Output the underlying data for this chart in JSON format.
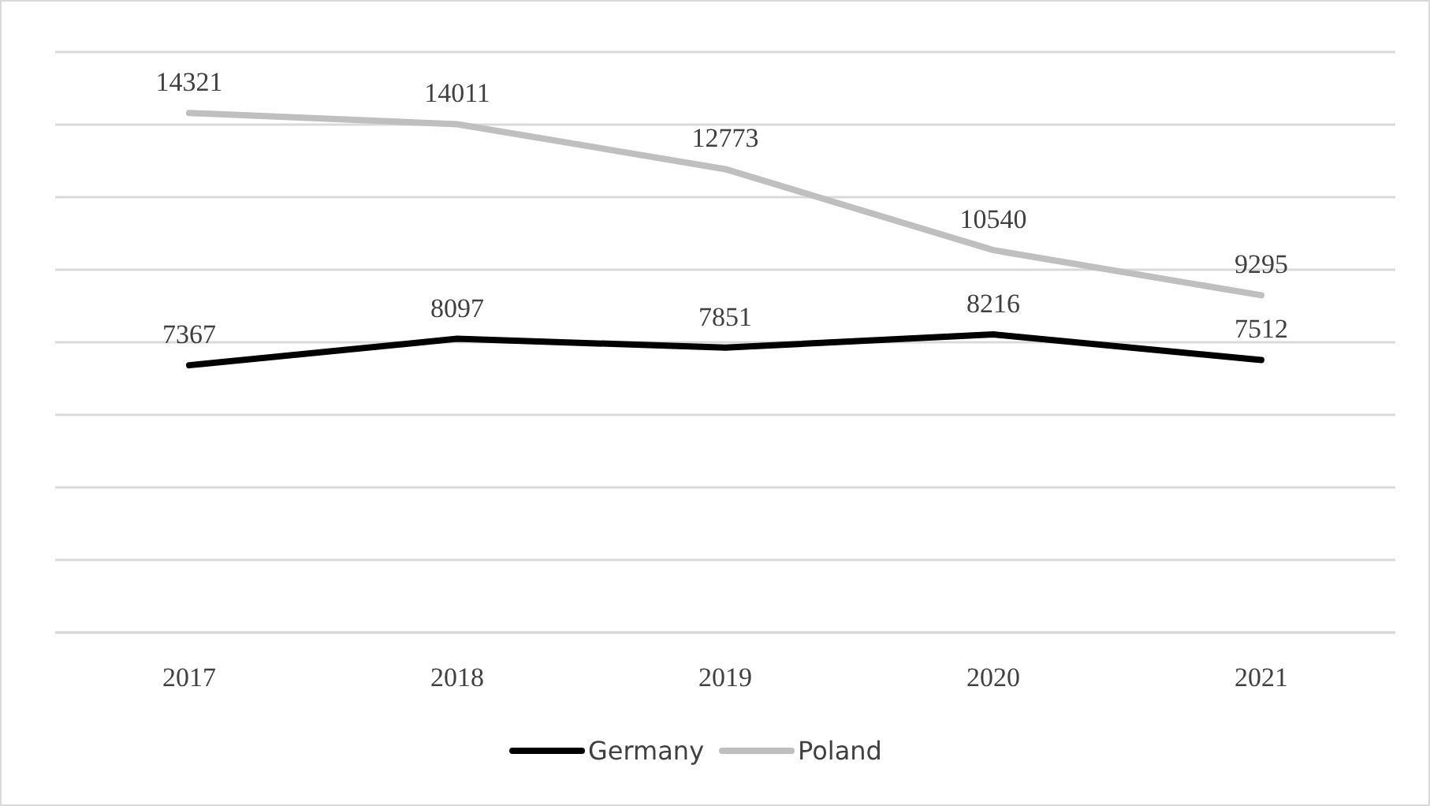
{
  "chart_data": {
    "type": "line",
    "categories": [
      "2017",
      "2018",
      "2019",
      "2020",
      "2021"
    ],
    "series": [
      {
        "name": "Germany",
        "color": "#000000",
        "values": [
          7367,
          8097,
          7851,
          8216,
          7512
        ]
      },
      {
        "name": "Poland",
        "color": "#bfbfbf",
        "values": [
          14321,
          14011,
          12773,
          10540,
          9295
        ]
      }
    ],
    "ylim": [
      0,
      16000
    ],
    "yticks": [
      {
        "value": 0,
        "label": null
      },
      {
        "value": 2000,
        "label": null
      },
      {
        "value": 4000,
        "label": null
      },
      {
        "value": 6000,
        "label": null
      },
      {
        "value": 8000,
        "label": null
      },
      {
        "value": 10000,
        "label": null
      },
      {
        "value": 12000,
        "label": null
      },
      {
        "value": 14000,
        "label": null
      },
      {
        "value": 16000,
        "label": null
      }
    ],
    "grid": true,
    "legend": "bottom",
    "data_labels": true
  }
}
